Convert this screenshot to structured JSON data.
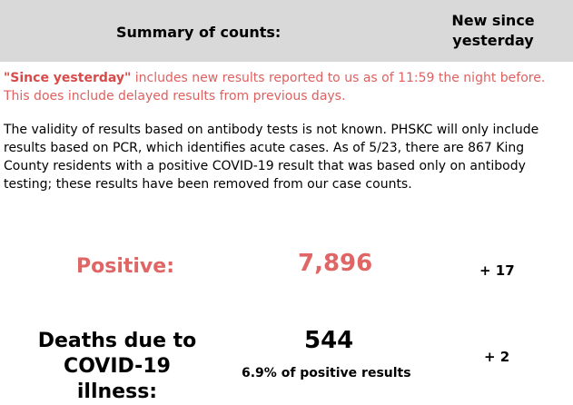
{
  "header": {
    "title": "Summary of counts:",
    "new_since_line1": "New since",
    "new_since_line2": "yesterday"
  },
  "note": {
    "bold": "\"Since yesterday\"",
    "text": " includes new results reported to us as of 11:59 the night before. This does include delayed results from previous days."
  },
  "validity": "The validity of results based on antibody tests is not known. PHSKC will only include results based on PCR, which identifies acute cases. As of 5/23, there are 867 King County residents with a positive COVID-19 result that was based only on antibody testing; these results have been removed from our case counts.",
  "positive": {
    "label": "Positive:",
    "value": "7,896",
    "new": "+ 17"
  },
  "deaths": {
    "label_line1": "Deaths due to",
    "label_line2": "COVID-19 illness:",
    "value": "544",
    "percent": "6.9% of positive results",
    "new": "+ 2"
  },
  "colors": {
    "header_bg": "#d9d9d9",
    "accent_red": "#e06565"
  }
}
